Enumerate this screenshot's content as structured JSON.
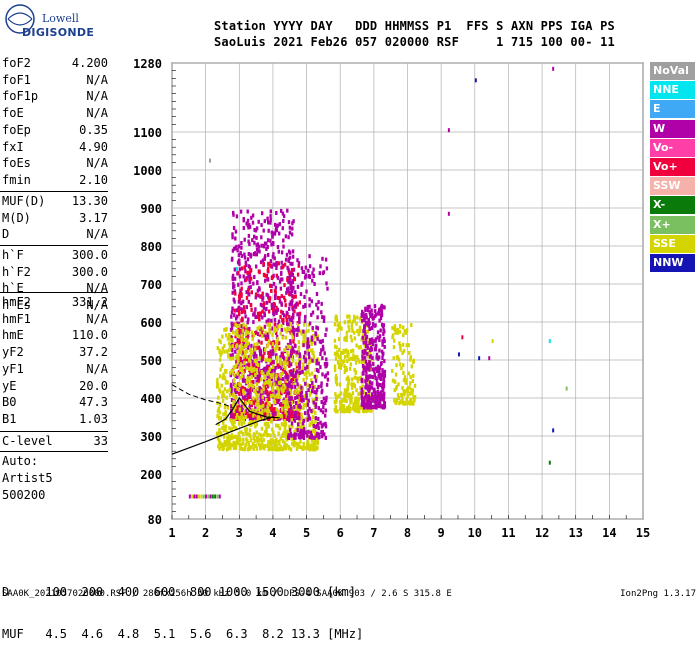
{
  "logo": {
    "brand_top": "Lowell",
    "brand_bottom": "DIGISONDE"
  },
  "header": {
    "line1": "Station YYYY DAY   DDD HHMMSS P1  FFS S AXN PPS IGA PS",
    "line2": "SaoLuis 2021 Feb26 057 020000 RSF     1 715 100 00- 11"
  },
  "params_group1": [
    {
      "k": "foF2",
      "v": "4.200"
    },
    {
      "k": "foF1",
      "v": "N/A"
    },
    {
      "k": "foF1p",
      "v": "N/A"
    },
    {
      "k": "foE",
      "v": "N/A"
    },
    {
      "k": "foEp",
      "v": "0.35"
    },
    {
      "k": "fxI",
      "v": "4.90"
    },
    {
      "k": "foEs",
      "v": "N/A"
    },
    {
      "k": "fmin",
      "v": "2.10"
    }
  ],
  "params_group2": [
    {
      "k": "MUF(D)",
      "v": "13.30"
    },
    {
      "k": "M(D)",
      "v": "3.17"
    },
    {
      "k": "D",
      "v": "N/A"
    }
  ],
  "params_group3": [
    {
      "k": "h`F",
      "v": "300.0"
    },
    {
      "k": "h`F2",
      "v": "300.0"
    },
    {
      "k": "h`E",
      "v": "N/A"
    },
    {
      "k": "h`Es",
      "v": "N/A"
    }
  ],
  "params_group4": [
    {
      "k": "hmF2",
      "v": "331.2"
    },
    {
      "k": "hmF1",
      "v": "N/A"
    },
    {
      "k": "hmE",
      "v": "110.0"
    },
    {
      "k": "yF2",
      "v": "37.2"
    },
    {
      "k": "yF1",
      "v": "N/A"
    },
    {
      "k": "yE",
      "v": "20.0"
    },
    {
      "k": "B0",
      "v": "47.3"
    },
    {
      "k": "B1",
      "v": "1.03"
    }
  ],
  "clevel": {
    "k": "C-level",
    "v": "33"
  },
  "auto": [
    "Auto:",
    "Artist5",
    "500200"
  ],
  "legend": [
    {
      "label": "NoVal",
      "color": "#a0a0a0"
    },
    {
      "label": "NNE",
      "color": "#00e5ee"
    },
    {
      "label": "E",
      "color": "#3fa9f5"
    },
    {
      "label": "W",
      "color": "#b000a8"
    },
    {
      "label": "Vo-",
      "color": "#ff3fa8"
    },
    {
      "label": "Vo+",
      "color": "#f0003c"
    },
    {
      "label": "SSW",
      "color": "#f4b2aa"
    },
    {
      "label": "X-",
      "color": "#0a7a0a"
    },
    {
      "label": "X+",
      "color": "#7ac060"
    },
    {
      "label": "SSE",
      "color": "#d4d400"
    },
    {
      "label": "NNW",
      "color": "#1414b4"
    }
  ],
  "d_table": {
    "d_row": "D     100  200  400  600  800 1000 1500 3000 [km]",
    "muf_row": "MUF   4.5  4.6  4.8  5.1  5.6  6.3  8.2 13.3 [MHz]"
  },
  "footer": "SAA0K_2021057020000.RSF / 280fx256h 50 kHz 5.0 km / DPS-4 SAA0K 903 / 2.6 S 315.8 E",
  "version": "Ion2Png 1.3.17",
  "chart_data": {
    "type": "scatter",
    "title": "",
    "xlabel": "",
    "ylabel": "",
    "xlim": [
      1,
      15
    ],
    "ylim": [
      80,
      1280
    ],
    "x_ticks": [
      1,
      2,
      3,
      4,
      5,
      6,
      7,
      8,
      9,
      10,
      11,
      12,
      13,
      14,
      15
    ],
    "y_ticks": [
      80,
      200,
      300,
      400,
      500,
      600,
      700,
      800,
      900,
      1000,
      1100,
      1280
    ],
    "grid": true,
    "echo_clusters": [
      {
        "name": "W",
        "x_range": [
          2.7,
          4.6
        ],
        "h_range": [
          350,
          900
        ],
        "density": "high",
        "color": "#b000a8"
      },
      {
        "name": "Vo+",
        "x_range": [
          2.8,
          4.8
        ],
        "h_range": [
          350,
          760
        ],
        "density": "medium",
        "color": "#f0003c"
      },
      {
        "name": "SSE",
        "x_range": [
          2.3,
          5.3
        ],
        "h_range": [
          270,
          600
        ],
        "density": "high",
        "color": "#d4d400"
      },
      {
        "name": "W",
        "x_range": [
          4.4,
          5.6
        ],
        "h_range": [
          300,
          780
        ],
        "density": "medium",
        "color": "#b000a8"
      },
      {
        "name": "SSE",
        "x_range": [
          5.8,
          6.9
        ],
        "h_range": [
          370,
          620
        ],
        "density": "medium",
        "color": "#d4d400"
      },
      {
        "name": "W",
        "x_range": [
          6.6,
          7.3
        ],
        "h_range": [
          380,
          650
        ],
        "density": "medium",
        "color": "#b000a8"
      },
      {
        "name": "SSE",
        "x_range": [
          7.5,
          8.2
        ],
        "h_range": [
          390,
          600
        ],
        "density": "low",
        "color": "#d4d400"
      }
    ],
    "isolated_points": [
      {
        "x": 9.2,
        "y": 1110,
        "c": "#b000a8"
      },
      {
        "x": 9.2,
        "y": 890,
        "c": "#b000a8"
      },
      {
        "x": 10.0,
        "y": 1240,
        "c": "#1414b4"
      },
      {
        "x": 12.3,
        "y": 1270,
        "c": "#b000a8"
      },
      {
        "x": 12.3,
        "y": 320,
        "c": "#1414b4"
      },
      {
        "x": 12.2,
        "y": 235,
        "c": "#0a7a0a"
      },
      {
        "x": 10.1,
        "y": 510,
        "c": "#1414b4"
      },
      {
        "x": 9.5,
        "y": 520,
        "c": "#1414b4"
      },
      {
        "x": 10.4,
        "y": 510,
        "c": "#b000a8"
      },
      {
        "x": 12.7,
        "y": 430,
        "c": "#7ac060"
      },
      {
        "x": 9.6,
        "y": 565,
        "c": "#f0003c"
      },
      {
        "x": 10.5,
        "y": 555,
        "c": "#d4d400"
      },
      {
        "x": 12.2,
        "y": 555,
        "c": "#00e5ee"
      },
      {
        "x": 2.1,
        "y": 1030,
        "c": "#a0a0a0"
      },
      {
        "x": 2.9,
        "y": 745,
        "c": "#00e5ee"
      }
    ],
    "low_trace_x": [
      1.5,
      2.4
    ],
    "low_trace_h": 140,
    "profile_lines": {
      "dashed_trace": [
        [
          1,
          435
        ],
        [
          1.5,
          410
        ],
        [
          2.0,
          395
        ],
        [
          2.5,
          385
        ],
        [
          2.8,
          375
        ]
      ],
      "solid_profile": [
        [
          1,
          252
        ],
        [
          2.0,
          285
        ],
        [
          3.0,
          320
        ],
        [
          3.6,
          340
        ],
        [
          4.0,
          350
        ]
      ],
      "upper_trace": [
        [
          2.3,
          330
        ],
        [
          2.6,
          345
        ],
        [
          2.8,
          370
        ],
        [
          3.0,
          400
        ],
        [
          3.3,
          365
        ],
        [
          3.8,
          350
        ],
        [
          4.2,
          348
        ]
      ]
    }
  }
}
